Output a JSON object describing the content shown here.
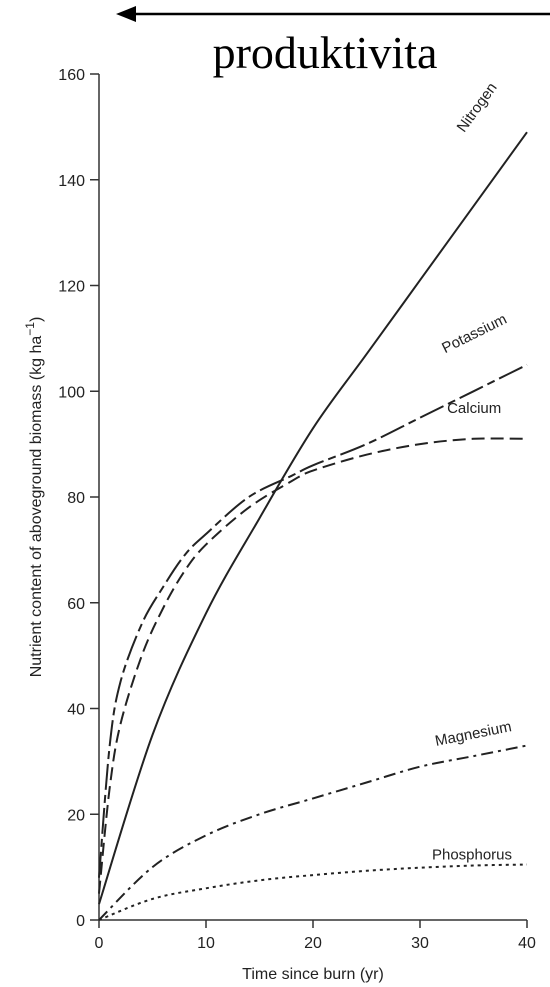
{
  "banner": {
    "text": "produktivita",
    "arrow": "left-arrow-icon"
  },
  "chart_data": {
    "type": "line",
    "xlabel": "Time since burn (yr)",
    "ylabel": "Nutrient content of aboveground biomass (kg ha",
    "ylabel_sup": "−1",
    "ylabel_close": ")",
    "xlim": [
      0,
      40
    ],
    "ylim": [
      0,
      160
    ],
    "x_ticks": [
      0,
      10,
      20,
      30,
      40
    ],
    "y_ticks": [
      0,
      20,
      40,
      60,
      80,
      100,
      120,
      140,
      160
    ],
    "grid": false,
    "legend": "inline labels",
    "series": [
      {
        "name": "Nitrogen",
        "dash": "solid",
        "x": [
          0,
          5,
          10,
          15,
          20,
          25,
          30,
          35,
          40
        ],
        "y": [
          3,
          35,
          58,
          76,
          93,
          107,
          121,
          135,
          149
        ]
      },
      {
        "name": "Potassium",
        "dash": "long-dash",
        "x": [
          0,
          1,
          2,
          4,
          6,
          8,
          10,
          14,
          18,
          20,
          25,
          30,
          35,
          40
        ],
        "y": [
          8,
          33,
          45,
          56,
          63,
          69,
          73,
          80,
          84,
          86,
          90,
          95,
          100,
          105
        ]
      },
      {
        "name": "Calcium",
        "dash": "dash",
        "x": [
          0,
          1,
          2,
          4,
          6,
          8,
          10,
          14,
          18,
          20,
          25,
          30,
          35,
          40
        ],
        "y": [
          5,
          25,
          37,
          50,
          59,
          66,
          71,
          78,
          83,
          85,
          88,
          90,
          91,
          91
        ]
      },
      {
        "name": "Magnesium",
        "dash": "dash-dot",
        "x": [
          0,
          5,
          10,
          15,
          20,
          25,
          30,
          35,
          40
        ],
        "y": [
          0,
          10,
          16,
          20,
          23,
          26,
          29,
          31,
          33
        ]
      },
      {
        "name": "Phosphorus",
        "dash": "dot",
        "x": [
          0,
          5,
          10,
          15,
          20,
          25,
          30,
          35,
          40
        ],
        "y": [
          0,
          4,
          6,
          7.5,
          8.5,
          9.3,
          9.9,
          10.3,
          10.5
        ]
      }
    ]
  }
}
